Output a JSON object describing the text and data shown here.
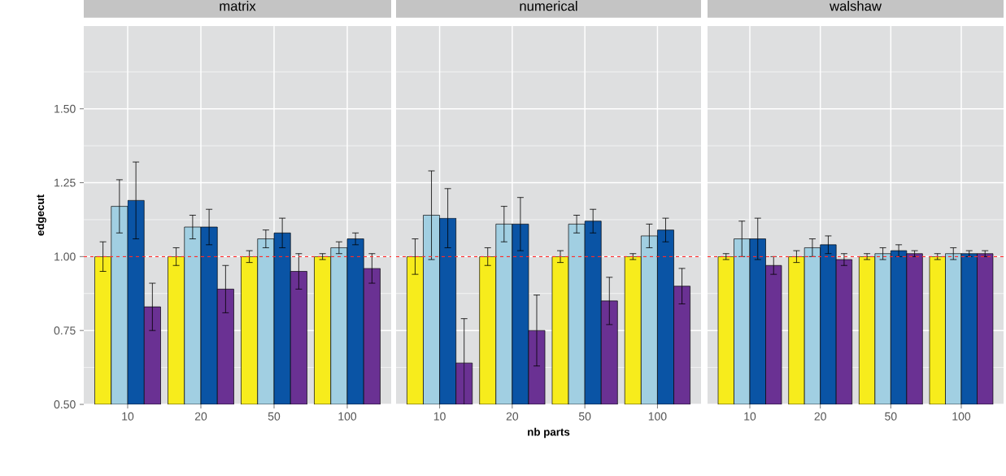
{
  "chart_data": [
    {
      "type": "bar",
      "title": "matrix",
      "ylabel": "edgecut",
      "categories": [
        "10",
        "20",
        "50",
        "100"
      ],
      "grid": true,
      "ylim": [
        0.5,
        1.78
      ],
      "yticks": [
        {
          "value": 0.5,
          "label": "0.50"
        },
        {
          "value": 0.75,
          "label": "0.75"
        },
        {
          "value": 1,
          "label": "1.00"
        },
        {
          "value": 1.25,
          "label": "1.25"
        },
        {
          "value": 1.5,
          "label": "1.50"
        }
      ],
      "ref_lines": [
        {
          "axis": "y",
          "value": 1,
          "color": "#ff2a2a",
          "line_style": "dashed"
        }
      ],
      "series": [
        {
          "color": "#f7ec1c",
          "values": [
            1.0,
            1.0,
            1.0,
            1.0
          ],
          "errors": [
            0.05,
            0.03,
            0.02,
            0.01
          ]
        },
        {
          "color": "#a1cfe2",
          "values": [
            1.17,
            1.1,
            1.06,
            1.03
          ],
          "errors": [
            0.09,
            0.04,
            0.03,
            0.02
          ]
        },
        {
          "color": "#0a54a5",
          "values": [
            1.19,
            1.1,
            1.08,
            1.06
          ],
          "errors": [
            0.13,
            0.06,
            0.05,
            0.02
          ]
        },
        {
          "color": "#6a3193",
          "values": [
            0.83,
            0.89,
            0.95,
            0.96
          ],
          "errors": [
            0.08,
            0.08,
            0.06,
            0.05
          ]
        }
      ]
    },
    {
      "type": "bar",
      "title": "numerical",
      "xlabel": "nb parts",
      "categories": [
        "10",
        "20",
        "50",
        "100"
      ],
      "grid": true,
      "tick_labels": "x",
      "ylim": [
        0.5,
        1.78
      ],
      "yticks": [
        0.5,
        0.75,
        1,
        1.25,
        1.5
      ],
      "ref_lines": [
        {
          "axis": "y",
          "value": 1,
          "color": "#ff2a2a",
          "line_style": "dashed"
        }
      ],
      "series": [
        {
          "color": "#f7ec1c",
          "values": [
            1.0,
            1.0,
            1.0,
            1.0
          ],
          "errors": [
            0.06,
            0.03,
            0.02,
            0.01
          ]
        },
        {
          "color": "#a1cfe2",
          "values": [
            1.14,
            1.11,
            1.11,
            1.07
          ],
          "errors": [
            0.15,
            0.06,
            0.03,
            0.04
          ]
        },
        {
          "color": "#0a54a5",
          "values": [
            1.13,
            1.11,
            1.12,
            1.09
          ],
          "errors": [
            0.1,
            0.09,
            0.04,
            0.04
          ]
        },
        {
          "color": "#6a3193",
          "values": [
            0.64,
            0.75,
            0.85,
            0.9
          ],
          "errors": [
            0.15,
            0.12,
            0.08,
            0.06
          ]
        }
      ]
    },
    {
      "type": "bar",
      "title": "walshaw",
      "categories": [
        "10",
        "20",
        "50",
        "100"
      ],
      "grid": true,
      "tick_labels": "x",
      "ylim": [
        0.5,
        1.78
      ],
      "yticks": [
        0.5,
        0.75,
        1,
        1.25,
        1.5
      ],
      "ref_lines": [
        {
          "axis": "y",
          "value": 1,
          "color": "#ff2a2a",
          "line_style": "dashed"
        }
      ],
      "series": [
        {
          "color": "#f7ec1c",
          "values": [
            1.0,
            1.0,
            1.0,
            1.0
          ],
          "errors": [
            0.01,
            0.02,
            0.01,
            0.01
          ]
        },
        {
          "color": "#a1cfe2",
          "values": [
            1.06,
            1.03,
            1.01,
            1.01
          ],
          "errors": [
            0.06,
            0.03,
            0.02,
            0.02
          ]
        },
        {
          "color": "#0a54a5",
          "values": [
            1.06,
            1.04,
            1.02,
            1.01
          ],
          "errors": [
            0.07,
            0.03,
            0.02,
            0.01
          ]
        },
        {
          "color": "#6a3193",
          "values": [
            0.97,
            0.99,
            1.01,
            1.01
          ],
          "errors": [
            0.03,
            0.02,
            0.01,
            0.01
          ]
        }
      ]
    }
  ]
}
